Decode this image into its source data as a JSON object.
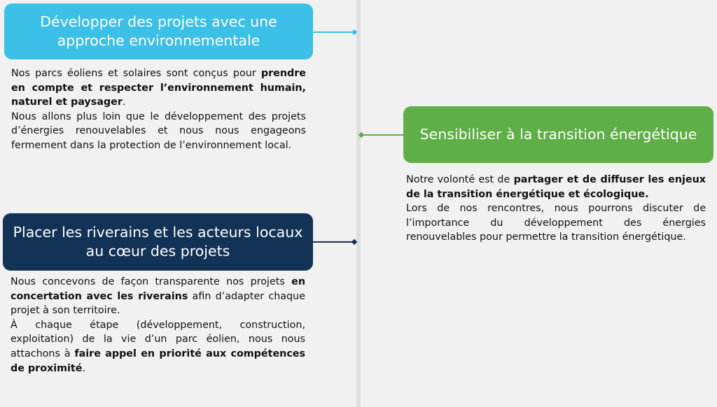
{
  "colors": {
    "blue": "#3dc0e8",
    "green": "#5fae47",
    "navy": "#133356",
    "background": "#f1f1f1"
  },
  "sections": [
    {
      "title": "Développer des projets avec une approche environnementale",
      "paragraphs": [
        [
          {
            "t": "Nos parcs éoliens et solaires sont conçus pour ",
            "b": false
          },
          {
            "t": "prendre en compte et respecter l’environnement humain, naturel et paysager",
            "b": true
          },
          {
            "t": ".",
            "b": false
          }
        ],
        [
          {
            "t": "Nous allons plus loin que le développement des projets d’énergies renouvelables et nous nous engageons fermement dans la protection de l’environnement local.",
            "b": false
          }
        ]
      ]
    },
    {
      "title": "Sensibiliser à la transition énergétique",
      "paragraphs": [
        [
          {
            "t": "Notre volonté est de ",
            "b": false
          },
          {
            "t": "partager et de diffuser les enjeux de la transition énergétique et écologique.",
            "b": true
          }
        ],
        [
          {
            "t": "Lors de nos rencontres, nous pourrons discuter de l’importance du développement des énergies renouvelables pour permettre la transition énergétique.",
            "b": false
          }
        ]
      ]
    },
    {
      "title": "Placer les riverains et les acteurs locaux au cœur des projets",
      "paragraphs": [
        [
          {
            "t": "Nous concevons de façon transparente nos projets ",
            "b": false
          },
          {
            "t": "en concertation avec les riverains",
            "b": true
          },
          {
            "t": " afin d’adapter chaque projet à son territoire.",
            "b": false
          }
        ],
        [
          {
            "t": "À chaque étape (développement, construction, exploitation) de la vie d’un parc éolien, nous nous attachons à ",
            "b": false
          },
          {
            "t": "faire appel en priorité aux compétences de proximité",
            "b": true
          },
          {
            "t": ".",
            "b": false
          }
        ]
      ]
    }
  ]
}
